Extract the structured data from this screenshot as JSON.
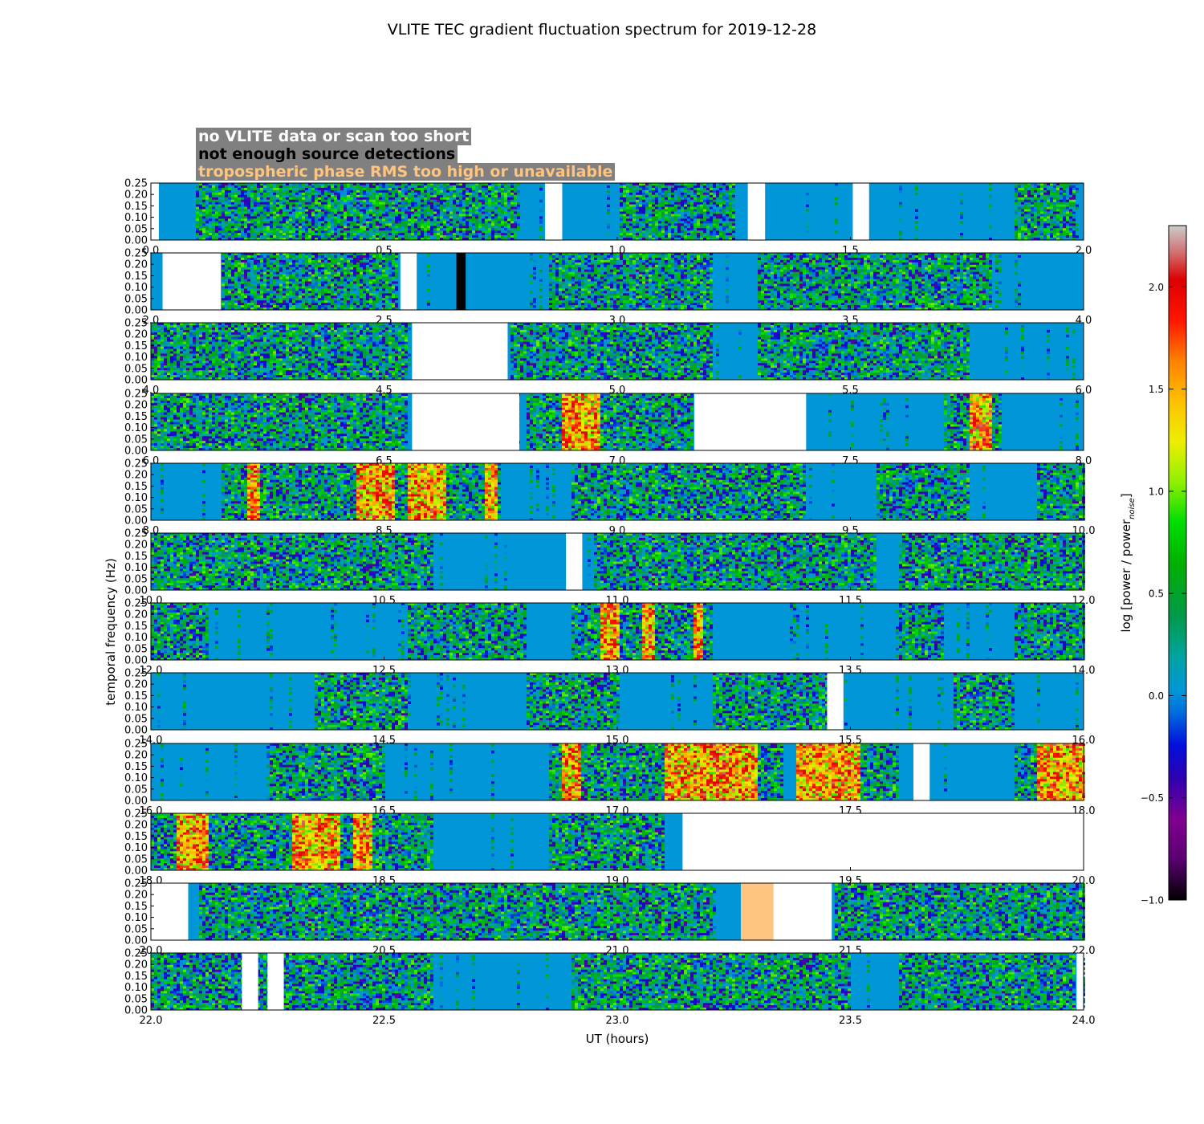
{
  "title": "VLITE TEC gradient fluctuation spectrum for 2019-12-28",
  "flag_legend": [
    {
      "label": "no VLITE data or scan too short",
      "color": "#ffffff"
    },
    {
      "label": "not enough source detections",
      "color": "#000000"
    },
    {
      "label": "tropospheric phase RMS too high or unavailable",
      "color": "#ffc580"
    }
  ],
  "chart_data": {
    "type": "heatmap",
    "xlabel": "UT (hours)",
    "ylabel": "temporal frequency (Hz)",
    "colorbar_label": "log [power / power",
    "colorbar_label_subscript": "noise",
    "colorbar_label_end": "]",
    "colorbar_range": [
      -1.0,
      2.3
    ],
    "colorbar_ticks": [
      "−1.0",
      "−0.5",
      "0.0",
      "0.5",
      "1.0",
      "1.5",
      "2.0"
    ],
    "colorbar_tick_values": [
      -1.0,
      -0.5,
      0.0,
      0.5,
      1.0,
      1.5,
      2.0
    ],
    "baseline_color": "#0096d8",
    "ylim": [
      0,
      0.25
    ],
    "y_tick_values": [
      0.0,
      0.05,
      0.1,
      0.15,
      0.2,
      0.25
    ],
    "y_ticks": [
      "0.00",
      "0.05",
      "0.10",
      "0.15",
      "0.20",
      "0.25"
    ],
    "panels": [
      {
        "xlim": [
          0,
          2
        ],
        "x_ticks": [
          "0.0",
          "0.5",
          "1.0",
          "1.5",
          "2.0"
        ],
        "gaps": [
          [
            0,
            0.017
          ],
          [
            0.845,
            0.882
          ],
          [
            1.28,
            1.317
          ],
          [
            1.505,
            1.54
          ]
        ],
        "active": [
          [
            0.09,
            0.78
          ],
          [
            1.0,
            1.25
          ],
          [
            1.85,
            1.98
          ]
        ]
      },
      {
        "xlim": [
          2,
          4
        ],
        "x_ticks": [
          "2.0",
          "2.5",
          "3.0",
          "3.5",
          "4.0"
        ],
        "gaps": [
          [
            2.025,
            2.15
          ],
          [
            2.535,
            2.57
          ]
        ],
        "nodet": [
          [
            2.655,
            2.675
          ]
        ],
        "active": [
          [
            2.15,
            2.53
          ],
          [
            2.85,
            3.2
          ],
          [
            3.3,
            3.8
          ]
        ]
      },
      {
        "xlim": [
          4,
          6
        ],
        "x_ticks": [
          "4.0",
          "4.5",
          "5.0",
          "5.5",
          "6.0"
        ],
        "gaps": [
          [
            4.56,
            4.765
          ]
        ],
        "active": [
          [
            4.0,
            4.55
          ],
          [
            4.765,
            5.2
          ],
          [
            5.3,
            5.75
          ]
        ]
      },
      {
        "xlim": [
          6,
          8
        ],
        "x_ticks": [
          "6.0",
          "6.5",
          "7.0",
          "7.5",
          "8.0"
        ],
        "gaps": [
          [
            6.56,
            6.79
          ],
          [
            7.165,
            7.405
          ]
        ],
        "active": [
          [
            6.0,
            6.55
          ],
          [
            6.8,
            7.16
          ],
          [
            7.7,
            7.82
          ]
        ],
        "hot": [
          [
            6.88,
            6.96
          ],
          [
            7.75,
            7.8
          ]
        ]
      },
      {
        "xlim": [
          8,
          10
        ],
        "x_ticks": [
          "8.0",
          "8.5",
          "9.0",
          "9.5",
          "10.0"
        ],
        "active": [
          [
            8.15,
            8.75
          ],
          [
            8.9,
            9.4
          ],
          [
            9.55,
            9.75
          ],
          [
            9.9,
            10.0
          ]
        ],
        "hot": [
          [
            8.44,
            8.52
          ],
          [
            8.55,
            8.63
          ],
          [
            8.2,
            8.23
          ],
          [
            8.71,
            8.74
          ]
        ]
      },
      {
        "xlim": [
          10,
          12
        ],
        "x_ticks": [
          "10.0",
          "10.5",
          "11.0",
          "11.5",
          "12.0"
        ],
        "gaps": [
          [
            10.89,
            10.925
          ]
        ],
        "active": [
          [
            10.0,
            10.6
          ],
          [
            10.95,
            11.55
          ],
          [
            11.6,
            12.0
          ]
        ]
      },
      {
        "xlim": [
          12,
          14
        ],
        "x_ticks": [
          "12.0",
          "12.5",
          "13.0",
          "13.5",
          "14.0"
        ],
        "active": [
          [
            12.0,
            12.12
          ],
          [
            12.55,
            12.8
          ],
          [
            12.9,
            13.2
          ],
          [
            13.6,
            13.7
          ],
          [
            13.85,
            14.0
          ]
        ],
        "hot": [
          [
            12.96,
            13.0
          ],
          [
            13.05,
            13.08
          ],
          [
            13.16,
            13.18
          ]
        ]
      },
      {
        "xlim": [
          14,
          16
        ],
        "x_ticks": [
          "14.0",
          "14.5",
          "15.0",
          "15.5",
          "16.0"
        ],
        "gaps": [
          [
            15.45,
            15.485
          ]
        ],
        "active": [
          [
            14.35,
            14.55
          ],
          [
            14.8,
            15.0
          ],
          [
            15.2,
            15.45
          ],
          [
            15.72,
            15.85
          ]
        ]
      },
      {
        "xlim": [
          16,
          18
        ],
        "x_ticks": [
          "16.0",
          "16.5",
          "17.0",
          "17.5",
          "18.0"
        ],
        "gaps": [
          [
            17.635,
            17.67
          ]
        ],
        "active": [
          [
            16.25,
            16.5
          ],
          [
            16.85,
            17.35
          ],
          [
            17.4,
            17.6
          ],
          [
            17.85,
            18.0
          ]
        ],
        "hot": [
          [
            16.88,
            16.92
          ],
          [
            17.1,
            17.3
          ],
          [
            17.38,
            17.52
          ],
          [
            17.9,
            18.0
          ]
        ]
      },
      {
        "xlim": [
          18,
          20
        ],
        "x_ticks": [
          "18.0",
          "18.5",
          "19.0",
          "19.5",
          "20.0"
        ],
        "gaps": [
          [
            19.14,
            20.0
          ]
        ],
        "active": [
          [
            18.0,
            18.6
          ],
          [
            18.85,
            19.1
          ]
        ],
        "hot": [
          [
            18.05,
            18.12
          ],
          [
            18.3,
            18.4
          ],
          [
            18.43,
            18.47
          ]
        ]
      },
      {
        "xlim": [
          20,
          22
        ],
        "x_ticks": [
          "20.0",
          "20.5",
          "21.0",
          "21.5",
          "22.0"
        ],
        "gaps": [
          [
            20.0,
            20.08
          ],
          [
            21.33,
            21.46
          ]
        ],
        "trop": [
          [
            21.265,
            21.335
          ]
        ],
        "active": [
          [
            20.1,
            21.2
          ],
          [
            21.46,
            22.0
          ]
        ]
      },
      {
        "xlim": [
          22,
          24
        ],
        "x_ticks": [
          "22.0",
          "22.5",
          "23.0",
          "23.5",
          "24.0"
        ],
        "gaps": [
          [
            22.195,
            22.23
          ],
          [
            22.25,
            22.285
          ],
          [
            23.985,
            24.0
          ]
        ],
        "active": [
          [
            22.0,
            22.6
          ],
          [
            22.9,
            23.5
          ],
          [
            23.6,
            23.98
          ]
        ]
      }
    ]
  }
}
